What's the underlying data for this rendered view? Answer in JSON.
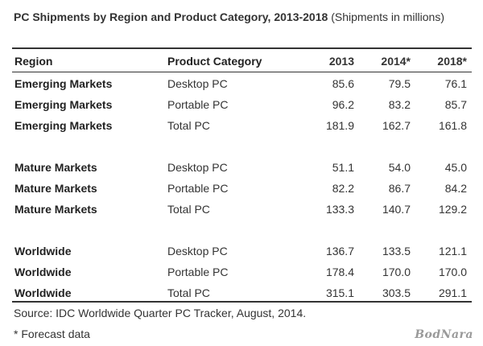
{
  "title": {
    "main": "PC Shipments by Region and Product Category, 2013-2018",
    "note": "(Shipments in millions)"
  },
  "headers": {
    "region": "Region",
    "category": "Product Category",
    "y2013": "2013",
    "y2014": "2014*",
    "y2018": "2018*"
  },
  "rows": [
    {
      "region": "Emerging Markets",
      "category": "Desktop PC",
      "y2013": "85.6",
      "y2014": "79.5",
      "y2018": "76.1"
    },
    {
      "region": "Emerging Markets",
      "category": "Portable PC",
      "y2013": "96.2",
      "y2014": "83.2",
      "y2018": "85.7"
    },
    {
      "region": "Emerging Markets",
      "category": "Total PC",
      "y2013": "181.9",
      "y2014": "162.7",
      "y2018": "161.8"
    },
    {
      "region": "Mature Markets",
      "category": "Desktop PC",
      "y2013": "51.1",
      "y2014": "54.0",
      "y2018": "45.0"
    },
    {
      "region": "Mature Markets",
      "category": "Portable PC",
      "y2013": "82.2",
      "y2014": "86.7",
      "y2018": "84.2"
    },
    {
      "region": "Mature Markets",
      "category": "Total PC",
      "y2013": "133.3",
      "y2014": "140.7",
      "y2018": "129.2"
    },
    {
      "region": "Worldwide",
      "category": "Desktop PC",
      "y2013": "136.7",
      "y2014": "133.5",
      "y2018": "121.1"
    },
    {
      "region": "Worldwide",
      "category": "Portable PC",
      "y2013": "178.4",
      "y2014": "170.0",
      "y2018": "170.0"
    },
    {
      "region": "Worldwide",
      "category": "Total PC",
      "y2013": "315.1",
      "y2014": "303.5",
      "y2018": "291.1"
    }
  ],
  "source": "Source: IDC Worldwide Quarter PC Tracker, August, 2014.",
  "footnote": "* Forecast data",
  "watermark": "BodNara"
}
